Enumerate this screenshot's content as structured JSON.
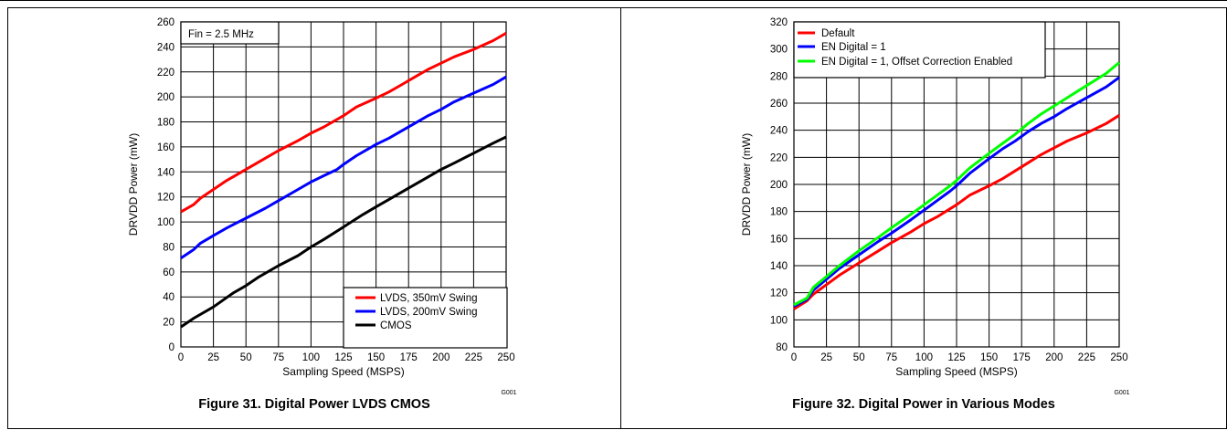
{
  "chart_data": [
    {
      "type": "line",
      "title": "",
      "xlabel": "Sampling Speed (MSPS)",
      "ylabel": "DRVDD Power (mW)",
      "xlim": [
        0,
        250
      ],
      "ylim": [
        0,
        260
      ],
      "xticks": [
        0,
        25,
        50,
        75,
        100,
        125,
        150,
        175,
        200,
        225,
        250
      ],
      "yticks": [
        0,
        20,
        40,
        60,
        80,
        100,
        120,
        140,
        160,
        180,
        200,
        220,
        240,
        260
      ],
      "grid": true,
      "legend_position": "bottom-right",
      "annotation": "Fin = 2.5 MHz",
      "code": "G001",
      "series": [
        {
          "name": "LVDS, 350mV Swing",
          "color": "#ff0000",
          "x": [
            0,
            10,
            15,
            25,
            35,
            50,
            65,
            75,
            90,
            100,
            110,
            120,
            125,
            135,
            150,
            160,
            170,
            180,
            190,
            200,
            210,
            225,
            240,
            250
          ],
          "y": [
            108,
            114,
            119,
            126,
            133,
            142,
            151,
            157,
            165,
            171,
            176,
            182,
            185,
            192,
            199,
            204,
            210,
            216,
            222,
            227,
            232,
            238,
            245,
            251
          ]
        },
        {
          "name": "LVDS, 200mV Swing",
          "color": "#0000ff",
          "x": [
            0,
            10,
            15,
            25,
            35,
            50,
            65,
            75,
            90,
            100,
            110,
            120,
            125,
            135,
            150,
            160,
            170,
            180,
            190,
            200,
            210,
            225,
            240,
            250
          ],
          "y": [
            71,
            78,
            83,
            89,
            95,
            103,
            111,
            117,
            126,
            132,
            137,
            142,
            146,
            153,
            162,
            167,
            173,
            179,
            185,
            190,
            196,
            203,
            210,
            216
          ]
        },
        {
          "name": "CMOS",
          "color": "#000000",
          "x": [
            0,
            10,
            25,
            40,
            50,
            60,
            75,
            90,
            100,
            110,
            125,
            140,
            150,
            160,
            175,
            190,
            200,
            210,
            225,
            240,
            250
          ],
          "y": [
            16,
            23,
            32,
            43,
            49,
            56,
            65,
            73,
            80,
            86,
            96,
            106,
            112,
            118,
            127,
            136,
            142,
            147,
            155,
            163,
            168
          ]
        }
      ]
    },
    {
      "type": "line",
      "title": "",
      "xlabel": "Sampling Speed (MSPS)",
      "ylabel": "DRVDD Power (mW)",
      "xlim": [
        0,
        250
      ],
      "ylim": [
        80,
        320
      ],
      "xticks": [
        0,
        25,
        50,
        75,
        100,
        125,
        150,
        175,
        200,
        225,
        250
      ],
      "yticks": [
        80,
        100,
        120,
        140,
        160,
        180,
        200,
        220,
        240,
        260,
        280,
        300,
        320
      ],
      "grid": true,
      "legend_position": "top-left",
      "code": "G001",
      "series": [
        {
          "name": "Default",
          "color": "#ff0000",
          "x": [
            0,
            10,
            15,
            25,
            35,
            50,
            65,
            75,
            90,
            100,
            110,
            120,
            125,
            135,
            150,
            160,
            170,
            180,
            190,
            200,
            210,
            225,
            240,
            250
          ],
          "y": [
            108,
            114,
            119,
            126,
            133,
            142,
            151,
            157,
            165,
            171,
            176,
            182,
            185,
            192,
            199,
            204,
            210,
            216,
            222,
            227,
            232,
            238,
            245,
            251
          ]
        },
        {
          "name": "EN Digital = 1",
          "color": "#0000ff",
          "x": [
            0,
            10,
            15,
            25,
            35,
            50,
            65,
            75,
            90,
            100,
            110,
            120,
            125,
            135,
            150,
            160,
            170,
            180,
            190,
            200,
            210,
            225,
            240,
            250
          ],
          "y": [
            110,
            115,
            122,
            130,
            138,
            148,
            158,
            164,
            174,
            181,
            188,
            195,
            199,
            208,
            219,
            226,
            232,
            239,
            245,
            250,
            256,
            264,
            272,
            279
          ]
        },
        {
          "name": "EN Digital = 1, Offset Correction Enabled",
          "color": "#00ff00",
          "x": [
            0,
            10,
            15,
            25,
            35,
            50,
            65,
            75,
            90,
            100,
            110,
            120,
            125,
            135,
            150,
            160,
            170,
            180,
            190,
            200,
            210,
            225,
            240,
            250
          ],
          "y": [
            111,
            116,
            124,
            132,
            140,
            151,
            161,
            168,
            178,
            185,
            192,
            199,
            203,
            212,
            223,
            230,
            237,
            245,
            252,
            258,
            264,
            273,
            282,
            290
          ]
        }
      ]
    }
  ],
  "captions": {
    "left": "Figure 31. Digital Power LVDS CMOS",
    "right": "Figure 32. Digital Power in Various Modes"
  }
}
